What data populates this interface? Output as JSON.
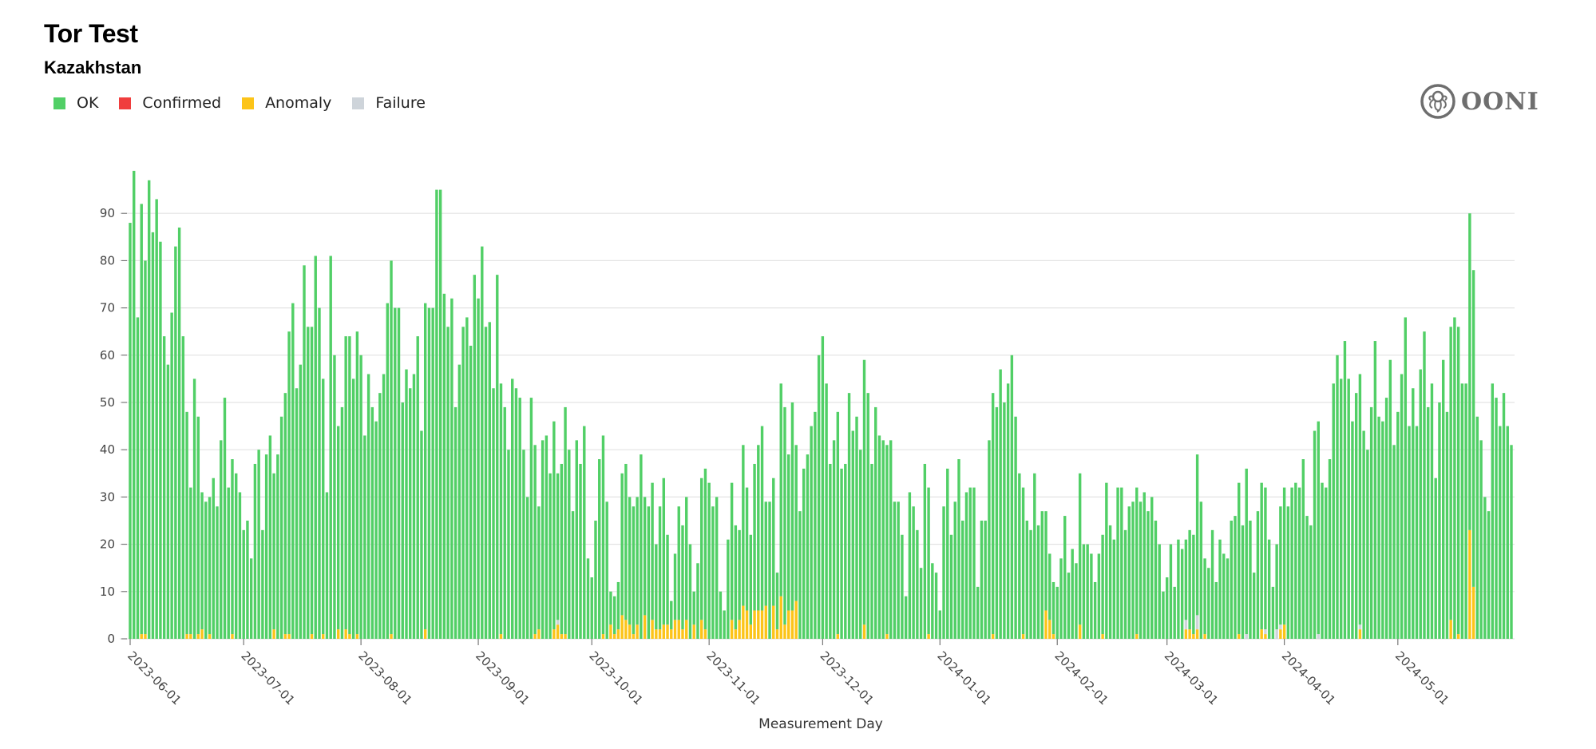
{
  "header": {
    "title": "Tor Test",
    "subtitle": "Kazakhstan"
  },
  "legend": [
    {
      "label": "OK",
      "color": "#51cf66"
    },
    {
      "label": "Confirmed",
      "color": "#f03e3e"
    },
    {
      "label": "Anomaly",
      "color": "#fcc419"
    },
    {
      "label": "Failure",
      "color": "#ced4da"
    }
  ],
  "logo": {
    "text": "OONI",
    "icon": "octopus-icon"
  },
  "chart_data": {
    "type": "bar",
    "stacked": true,
    "xlabel": "Measurement Day",
    "ylabel": "",
    "x_range": [
      "2023-06-01",
      "2024-05-31"
    ],
    "ylim": [
      0,
      100
    ],
    "y_ticks": [
      0,
      10,
      20,
      30,
      40,
      50,
      60,
      70,
      80,
      90
    ],
    "x_ticks": [
      "2023-06-01",
      "2023-07-01",
      "2023-08-01",
      "2023-09-01",
      "2023-10-01",
      "2023-11-01",
      "2023-12-01",
      "2024-01-01",
      "2024-02-01",
      "2024-03-01",
      "2024-04-01",
      "2024-05-01"
    ],
    "grid": true,
    "legend_position": "top-left",
    "series": [
      {
        "name": "OK",
        "color": "#51cf66",
        "values": [
          88,
          99,
          68,
          91,
          79,
          97,
          86,
          93,
          84,
          64,
          58,
          69,
          83,
          87,
          64,
          47,
          31,
          55,
          46,
          29,
          29,
          29,
          34,
          28,
          42,
          51,
          32,
          37,
          35,
          31,
          23,
          25,
          17,
          37,
          40,
          23,
          39,
          43,
          33,
          39,
          47,
          51,
          64,
          71,
          53,
          58,
          79,
          66,
          65,
          81,
          70,
          54,
          31,
          81,
          60,
          43,
          49,
          62,
          63,
          55,
          64,
          60,
          43,
          56,
          49,
          46,
          52,
          56,
          71,
          79,
          70,
          70,
          50,
          57,
          53,
          56,
          64,
          44,
          69,
          70,
          70,
          95,
          95,
          73,
          66,
          72,
          49,
          58,
          66,
          68,
          62,
          77,
          72,
          83,
          66,
          67,
          53,
          77,
          53,
          49,
          40,
          55,
          53,
          51,
          40,
          30,
          51,
          40,
          26,
          42,
          43,
          35,
          44,
          31,
          36,
          48,
          40,
          27,
          42,
          37,
          45,
          17,
          13,
          25,
          38,
          42,
          29,
          7,
          8,
          10,
          30,
          33,
          27,
          27,
          27,
          39,
          25,
          28,
          29,
          18,
          26,
          31,
          19,
          6,
          14,
          24,
          22,
          26,
          20,
          7,
          16,
          30,
          34,
          33,
          28,
          30,
          10,
          6,
          21,
          29,
          22,
          19,
          34,
          26,
          19,
          31,
          35,
          39,
          22,
          29,
          27,
          12,
          45,
          46,
          33,
          44,
          33,
          27,
          36,
          39,
          45,
          48,
          60,
          64,
          54,
          37,
          42,
          47,
          36,
          37,
          52,
          44,
          47,
          40,
          56,
          52,
          37,
          49,
          43,
          42,
          40,
          42,
          29,
          29,
          22,
          9,
          31,
          28,
          23,
          15,
          37,
          31,
          16,
          14,
          6,
          28,
          36,
          22,
          29,
          38,
          25,
          31,
          32,
          32,
          11,
          25,
          25,
          42,
          51,
          49,
          57,
          50,
          54,
          60,
          47,
          35,
          31,
          25,
          23,
          35,
          24,
          27,
          21,
          14,
          11,
          11,
          17,
          26,
          14,
          19,
          16,
          32,
          20,
          20,
          18,
          12,
          18,
          21,
          33,
          24,
          21,
          32,
          32,
          23,
          28,
          29,
          31,
          29,
          31,
          27,
          30,
          25,
          20,
          10,
          13,
          20,
          11,
          21,
          19,
          17,
          21,
          21,
          34,
          29,
          16,
          15,
          23,
          12,
          21,
          18,
          17,
          25,
          26,
          32,
          24,
          35,
          25,
          14,
          27,
          31,
          30,
          21,
          11,
          18,
          25,
          29,
          28,
          32,
          33,
          32,
          38,
          26,
          24,
          44,
          45,
          33,
          32,
          38,
          54,
          60,
          55,
          63,
          55,
          46,
          52,
          53,
          44,
          40,
          49,
          63,
          47,
          46,
          51,
          59,
          41,
          48,
          56,
          68,
          45,
          53,
          45,
          57,
          65,
          49,
          54,
          34,
          50,
          59,
          48,
          62,
          68,
          65,
          54,
          54,
          67,
          67,
          47,
          42,
          30,
          27,
          54,
          51,
          45,
          52,
          45,
          41
        ]
      },
      {
        "name": "Confirmed",
        "color": "#f03e3e",
        "values_by_date": {}
      },
      {
        "name": "Anomaly",
        "color": "#fcc419",
        "values_by_date": {
          "2023-06-04": 1,
          "2023-06-05": 1,
          "2023-06-16": 1,
          "2023-06-17": 1,
          "2023-06-19": 1,
          "2023-06-20": 2,
          "2023-06-22": 1,
          "2023-06-28": 1,
          "2023-07-09": 2,
          "2023-07-12": 1,
          "2023-07-13": 1,
          "2023-07-19": 1,
          "2023-07-22": 1,
          "2023-07-26": 2,
          "2023-07-28": 2,
          "2023-07-29": 1,
          "2023-07-31": 1,
          "2023-08-09": 1,
          "2023-08-18": 2,
          "2023-09-07": 1,
          "2023-09-16": 1,
          "2023-09-17": 2,
          "2023-09-21": 2,
          "2023-09-22": 3,
          "2023-09-23": 1,
          "2023-09-24": 1,
          "2023-10-04": 1,
          "2023-10-06": 3,
          "2023-10-07": 1,
          "2023-10-08": 2,
          "2023-10-09": 5,
          "2023-10-10": 4,
          "2023-10-11": 3,
          "2023-10-12": 1,
          "2023-10-13": 3,
          "2023-10-15": 5,
          "2023-10-17": 4,
          "2023-10-18": 2,
          "2023-10-19": 2,
          "2023-10-20": 3,
          "2023-10-21": 3,
          "2023-10-22": 2,
          "2023-10-23": 4,
          "2023-10-24": 4,
          "2023-10-25": 2,
          "2023-10-26": 4,
          "2023-10-28": 3,
          "2023-10-30": 4,
          "2023-10-31": 2,
          "2023-11-07": 4,
          "2023-11-08": 2,
          "2023-11-09": 4,
          "2023-11-10": 7,
          "2023-11-11": 6,
          "2023-11-12": 3,
          "2023-11-13": 6,
          "2023-11-14": 6,
          "2023-11-15": 6,
          "2023-11-16": 7,
          "2023-11-18": 7,
          "2023-11-19": 2,
          "2023-11-20": 9,
          "2023-11-21": 3,
          "2023-11-22": 6,
          "2023-11-23": 6,
          "2023-11-24": 8,
          "2023-12-05": 1,
          "2023-12-12": 3,
          "2023-12-18": 1,
          "2023-12-29": 1,
          "2024-01-15": 1,
          "2024-01-23": 1,
          "2024-01-29": 6,
          "2024-01-30": 4,
          "2024-01-31": 1,
          "2024-02-07": 3,
          "2024-02-13": 1,
          "2024-02-22": 1,
          "2024-03-06": 2,
          "2024-03-07": 2,
          "2024-03-08": 1,
          "2024-03-09": 2,
          "2024-03-11": 1,
          "2024-03-20": 1,
          "2024-03-26": 2,
          "2024-03-27": 1,
          "2024-03-31": 2,
          "2024-04-01": 3,
          "2024-04-21": 2,
          "2024-05-15": 4,
          "2024-05-17": 1,
          "2024-05-20": 23,
          "2024-05-21": 11
        }
      },
      {
        "name": "Failure",
        "color": "#ced4da",
        "values_by_date": {
          "2023-09-22": 1,
          "2024-03-06": 2,
          "2024-03-09": 3,
          "2024-03-22": 1,
          "2024-03-27": 1,
          "2024-03-30": 2,
          "2024-03-31": 1,
          "2024-04-10": 1,
          "2024-04-21": 1
        }
      }
    ]
  }
}
